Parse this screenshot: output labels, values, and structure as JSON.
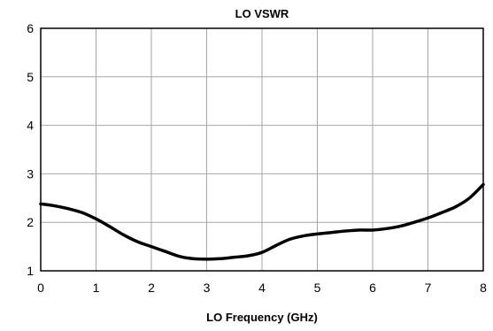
{
  "chart_data": {
    "type": "line",
    "title": "LO VSWR",
    "xlabel": "LO Frequency (GHz)",
    "ylabel": "",
    "xlim": [
      0,
      8
    ],
    "ylim": [
      1,
      6
    ],
    "x_ticks": [
      0,
      1,
      2,
      3,
      4,
      5,
      6,
      7,
      8
    ],
    "y_ticks": [
      1,
      2,
      3,
      4,
      5,
      6
    ],
    "grid": true,
    "legend": "none",
    "series": [
      {
        "color": "#000000",
        "x": [
          0,
          0.25,
          0.5,
          0.75,
          1.0,
          1.25,
          1.5,
          1.75,
          2.0,
          2.25,
          2.5,
          2.75,
          3.0,
          3.25,
          3.5,
          3.75,
          4.0,
          4.25,
          4.5,
          4.75,
          5.0,
          5.25,
          5.5,
          5.75,
          6.0,
          6.25,
          6.5,
          6.75,
          7.0,
          7.25,
          7.5,
          7.75,
          8.0
        ],
        "y": [
          2.38,
          2.34,
          2.28,
          2.2,
          2.07,
          1.91,
          1.74,
          1.6,
          1.5,
          1.4,
          1.3,
          1.25,
          1.24,
          1.25,
          1.28,
          1.31,
          1.38,
          1.52,
          1.65,
          1.72,
          1.76,
          1.79,
          1.82,
          1.84,
          1.84,
          1.87,
          1.92,
          2.0,
          2.09,
          2.2,
          2.32,
          2.5,
          2.78
        ]
      }
    ]
  }
}
